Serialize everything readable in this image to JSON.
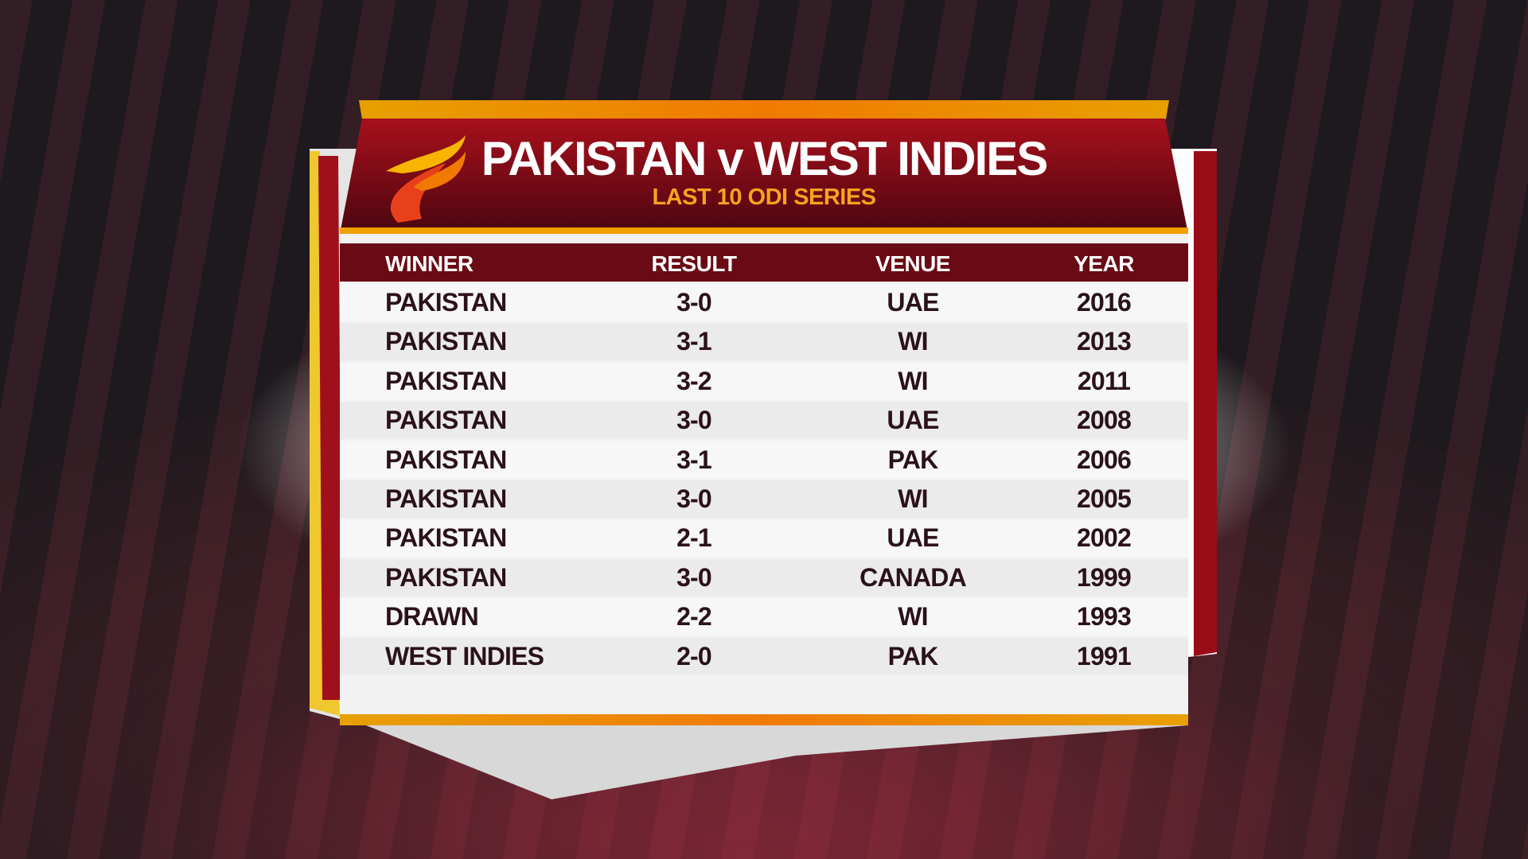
{
  "header": {
    "title": "PAKISTAN v WEST INDIES",
    "subtitle": "LAST 10 ODI SERIES"
  },
  "table": {
    "columns": [
      "WINNER",
      "RESULT",
      "VENUE",
      "YEAR"
    ],
    "rows": [
      [
        "PAKISTAN",
        "3-0",
        "UAE",
        "2016"
      ],
      [
        "PAKISTAN",
        "3-1",
        "WI",
        "2013"
      ],
      [
        "PAKISTAN",
        "3-2",
        "WI",
        "2011"
      ],
      [
        "PAKISTAN",
        "3-0",
        "UAE",
        "2008"
      ],
      [
        "PAKISTAN",
        "3-1",
        "PAK",
        "2006"
      ],
      [
        "PAKISTAN",
        "3-0",
        "WI",
        "2005"
      ],
      [
        "PAKISTAN",
        "2-1",
        "UAE",
        "2002"
      ],
      [
        "PAKISTAN",
        "3-0",
        "CANADA",
        "1999"
      ],
      [
        "DRAWN",
        "2-2",
        "WI",
        "1993"
      ],
      [
        "WEST INDIES",
        "2-0",
        "PAK",
        "1991"
      ]
    ]
  }
}
